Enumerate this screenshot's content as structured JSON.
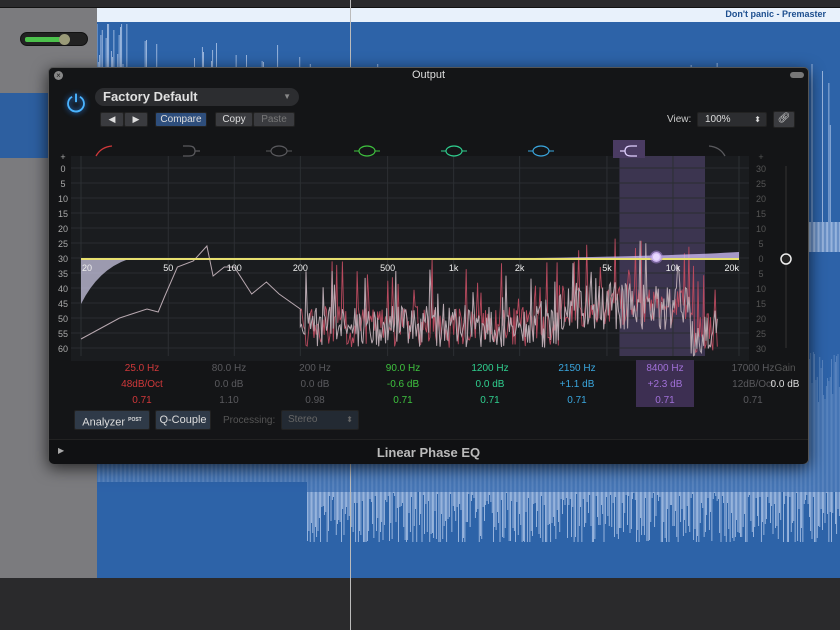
{
  "region": {
    "title": "Don't panic - Premaster",
    "color": "#2d63a8"
  },
  "plugin": {
    "window_title": "Output",
    "preset": "Factory Default",
    "prev_label": "◀",
    "next_label": "▶",
    "compare_label": "Compare",
    "copy_label": "Copy",
    "paste_label": "Paste",
    "view_label": "View:",
    "view_value": "100%",
    "plugin_name": "Linear Phase EQ",
    "analyzer_label": "Analyzer",
    "analyzer_badge": "POST",
    "qcouple_label": "Q-Couple",
    "processing_label": "Processing:",
    "processing_value": "Stereo"
  },
  "graph": {
    "left_scale": [
      "+",
      "0",
      "5",
      "10",
      "15",
      "20",
      "25",
      "30",
      "35",
      "40",
      "45",
      "50",
      "55",
      "60"
    ],
    "right_scale": [
      "+",
      "30",
      "25",
      "20",
      "15",
      "10",
      "5",
      "0",
      "5",
      "10",
      "15",
      "20",
      "25",
      "30"
    ],
    "freq_labels": [
      "20",
      "50",
      "100",
      "200",
      "500",
      "1k",
      "2k",
      "5k",
      "10k",
      "20k"
    ],
    "freq_values": [
      20,
      50,
      100,
      200,
      500,
      1000,
      2000,
      5000,
      10000,
      20000
    ]
  },
  "bands": [
    {
      "freq": "25.0 Hz",
      "gain": "48dB/Oct",
      "q": "0.71",
      "color": "#d0383a",
      "enabled": true,
      "type": "low-cut"
    },
    {
      "freq": "80.0 Hz",
      "gain": "0.0 dB",
      "q": "1.10",
      "color": "#5a5a5e",
      "enabled": false,
      "type": "low-shelf"
    },
    {
      "freq": "200 Hz",
      "gain": "0.0 dB",
      "q": "0.98",
      "color": "#5a5a5e",
      "enabled": false,
      "type": "bell"
    },
    {
      "freq": "90.0 Hz",
      "gain": "-0.6 dB",
      "q": "0.71",
      "color": "#3fc23f",
      "enabled": true,
      "type": "bell"
    },
    {
      "freq": "1200 Hz",
      "gain": "0.0 dB",
      "q": "0.71",
      "color": "#2fcf8f",
      "enabled": true,
      "type": "bell"
    },
    {
      "freq": "2150 Hz",
      "gain": "+1.1 dB",
      "q": "0.71",
      "color": "#3aa6de",
      "enabled": true,
      "type": "bell"
    },
    {
      "freq": "8400 Hz",
      "gain": "+2.3 dB",
      "q": "0.71",
      "color": "#a070d8",
      "enabled": true,
      "type": "high-shelf",
      "selected": true
    },
    {
      "freq": "17000 Hz",
      "gain": "12dB/Oct",
      "q": "0.71",
      "color": "#5a5a5e",
      "enabled": false,
      "type": "high-cut"
    }
  ],
  "gain": {
    "label": "Gain",
    "value": "0.0 dB"
  }
}
